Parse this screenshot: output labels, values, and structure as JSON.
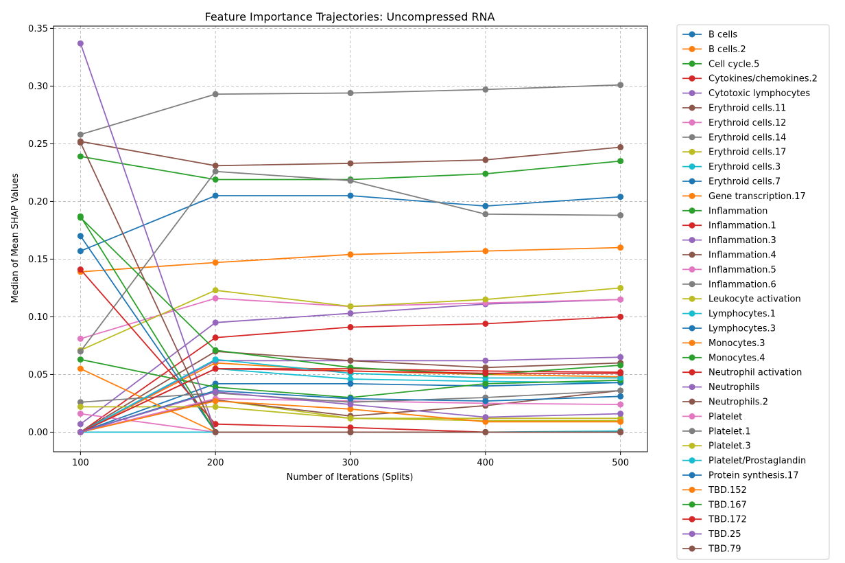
{
  "chart_data": {
    "type": "line",
    "title": "Feature Importance Trajectories: Uncompressed RNA",
    "xlabel": "Number of Iterations (Splits)",
    "ylabel": "Median of Mean SHAP Values",
    "x": [
      100,
      200,
      300,
      400,
      500
    ],
    "xlim": [
      80,
      520
    ],
    "ylim": [
      -0.017,
      0.352
    ],
    "xticks": [
      100,
      200,
      300,
      400,
      500
    ],
    "yticks": [
      0.0,
      0.05,
      0.1,
      0.15,
      0.2,
      0.25,
      0.3,
      0.35
    ],
    "ytick_labels": [
      "0.00",
      "0.05",
      "0.10",
      "0.15",
      "0.20",
      "0.25",
      "0.30",
      "0.35"
    ],
    "grid": true,
    "legend_position": "outside-right",
    "colors": [
      "#1f77b4",
      "#ff7f0e",
      "#2ca02c",
      "#d62728",
      "#9467bd",
      "#8c564b",
      "#e377c2",
      "#7f7f7f",
      "#bcbd22",
      "#17becf"
    ],
    "series": [
      {
        "name": "B cells",
        "values": [
          0.157,
          0.205,
          0.205,
          0.196,
          0.204
        ]
      },
      {
        "name": "B cells.2",
        "values": [
          0.139,
          0.147,
          0.154,
          0.157,
          0.16
        ]
      },
      {
        "name": "Cell cycle.5",
        "values": [
          0.239,
          0.219,
          0.219,
          0.224,
          0.235
        ]
      },
      {
        "name": "Cytokines/chemokines.2",
        "values": [
          0.0,
          0.082,
          0.091,
          0.094,
          0.1
        ]
      },
      {
        "name": "Cytotoxic lymphocytes",
        "values": [
          0.007,
          0.095,
          0.103,
          0.111,
          0.115
        ]
      },
      {
        "name": "Erythroid cells.11",
        "values": [
          0.252,
          0.231,
          0.233,
          0.236,
          0.247
        ]
      },
      {
        "name": "Erythroid cells.12",
        "values": [
          0.081,
          0.116,
          0.109,
          0.112,
          0.115
        ]
      },
      {
        "name": "Erythroid cells.14",
        "values": [
          0.258,
          0.293,
          0.294,
          0.297,
          0.301
        ]
      },
      {
        "name": "Erythroid cells.17",
        "values": [
          0.071,
          0.123,
          0.109,
          0.115,
          0.125
        ]
      },
      {
        "name": "Erythroid cells.3",
        "values": [
          0.0,
          0.055,
          0.046,
          0.044,
          0.043
        ]
      },
      {
        "name": "Erythroid cells.7",
        "values": [
          0.0,
          0.042,
          0.042,
          0.04,
          0.043
        ]
      },
      {
        "name": "Gene transcription.17",
        "values": [
          0.0,
          0.06,
          0.053,
          0.05,
          0.048
        ]
      },
      {
        "name": "Inflammation",
        "values": [
          0.063,
          0.039,
          0.03,
          0.042,
          0.045
        ]
      },
      {
        "name": "Inflammation.1",
        "values": [
          0.0,
          0.055,
          0.055,
          0.053,
          0.052
        ]
      },
      {
        "name": "Inflammation.3",
        "values": [
          0.0,
          0.062,
          0.062,
          0.062,
          0.065
        ]
      },
      {
        "name": "Inflammation.4",
        "values": [
          0.0,
          0.07,
          0.062,
          0.056,
          0.06
        ]
      },
      {
        "name": "Inflammation.5",
        "values": [
          0.016,
          0.0,
          0.0,
          0.0,
          0.0
        ]
      },
      {
        "name": "Inflammation.6",
        "values": [
          0.07,
          0.226,
          0.218,
          0.189,
          0.188
        ]
      },
      {
        "name": "Leukocyte activation",
        "values": [
          0.0,
          0.028,
          0.012,
          0.012,
          0.012
        ]
      },
      {
        "name": "Lymphocytes.1",
        "values": [
          0.0,
          0.0,
          0.0,
          0.0,
          0.001
        ]
      },
      {
        "name": "Lymphocytes.3",
        "values": [
          0.17,
          0.0,
          0.0,
          0.0,
          0.0
        ]
      },
      {
        "name": "Monocytes.3",
        "values": [
          0.055,
          0.0,
          0.0,
          0.0,
          0.0
        ]
      },
      {
        "name": "Monocytes.4",
        "values": [
          0.187,
          0.0,
          0.0,
          0.0,
          0.0
        ]
      },
      {
        "name": "Neutrophil activation",
        "values": [
          0.141,
          0.007,
          0.004,
          0.0,
          0.0
        ]
      },
      {
        "name": "Neutrophils",
        "values": [
          0.337,
          0.0,
          0.0,
          0.0,
          0.0
        ]
      },
      {
        "name": "Neutrophils.2",
        "values": [
          0.0,
          0.028,
          0.014,
          0.023,
          0.036
        ]
      },
      {
        "name": "Platelet",
        "values": [
          0.0,
          0.029,
          0.027,
          0.025,
          0.024
        ]
      },
      {
        "name": "Platelet.1",
        "values": [
          0.026,
          0.034,
          0.026,
          0.03,
          0.036
        ]
      },
      {
        "name": "Platelet.3",
        "values": [
          0.022,
          0.022,
          0.012,
          0.01,
          0.01
        ]
      },
      {
        "name": "Platelet/Prostaglandin",
        "values": [
          0.0,
          0.063,
          0.051,
          0.047,
          0.047
        ]
      },
      {
        "name": "Protein synthesis.17",
        "values": [
          0.0,
          0.036,
          0.029,
          0.027,
          0.031
        ]
      },
      {
        "name": "TBD.152",
        "values": [
          0.0,
          0.027,
          0.02,
          0.009,
          0.009
        ]
      },
      {
        "name": "TBD.167",
        "values": [
          0.186,
          0.071,
          0.056,
          0.05,
          0.058
        ]
      },
      {
        "name": "TBD.172",
        "values": [
          0.0,
          0.055,
          0.053,
          0.051,
          0.051
        ]
      },
      {
        "name": "TBD.25",
        "values": [
          0.0,
          0.035,
          0.024,
          0.013,
          0.016
        ]
      },
      {
        "name": "TBD.79",
        "values": [
          0.251,
          0.0,
          0.0,
          0.0,
          0.0
        ]
      }
    ]
  }
}
